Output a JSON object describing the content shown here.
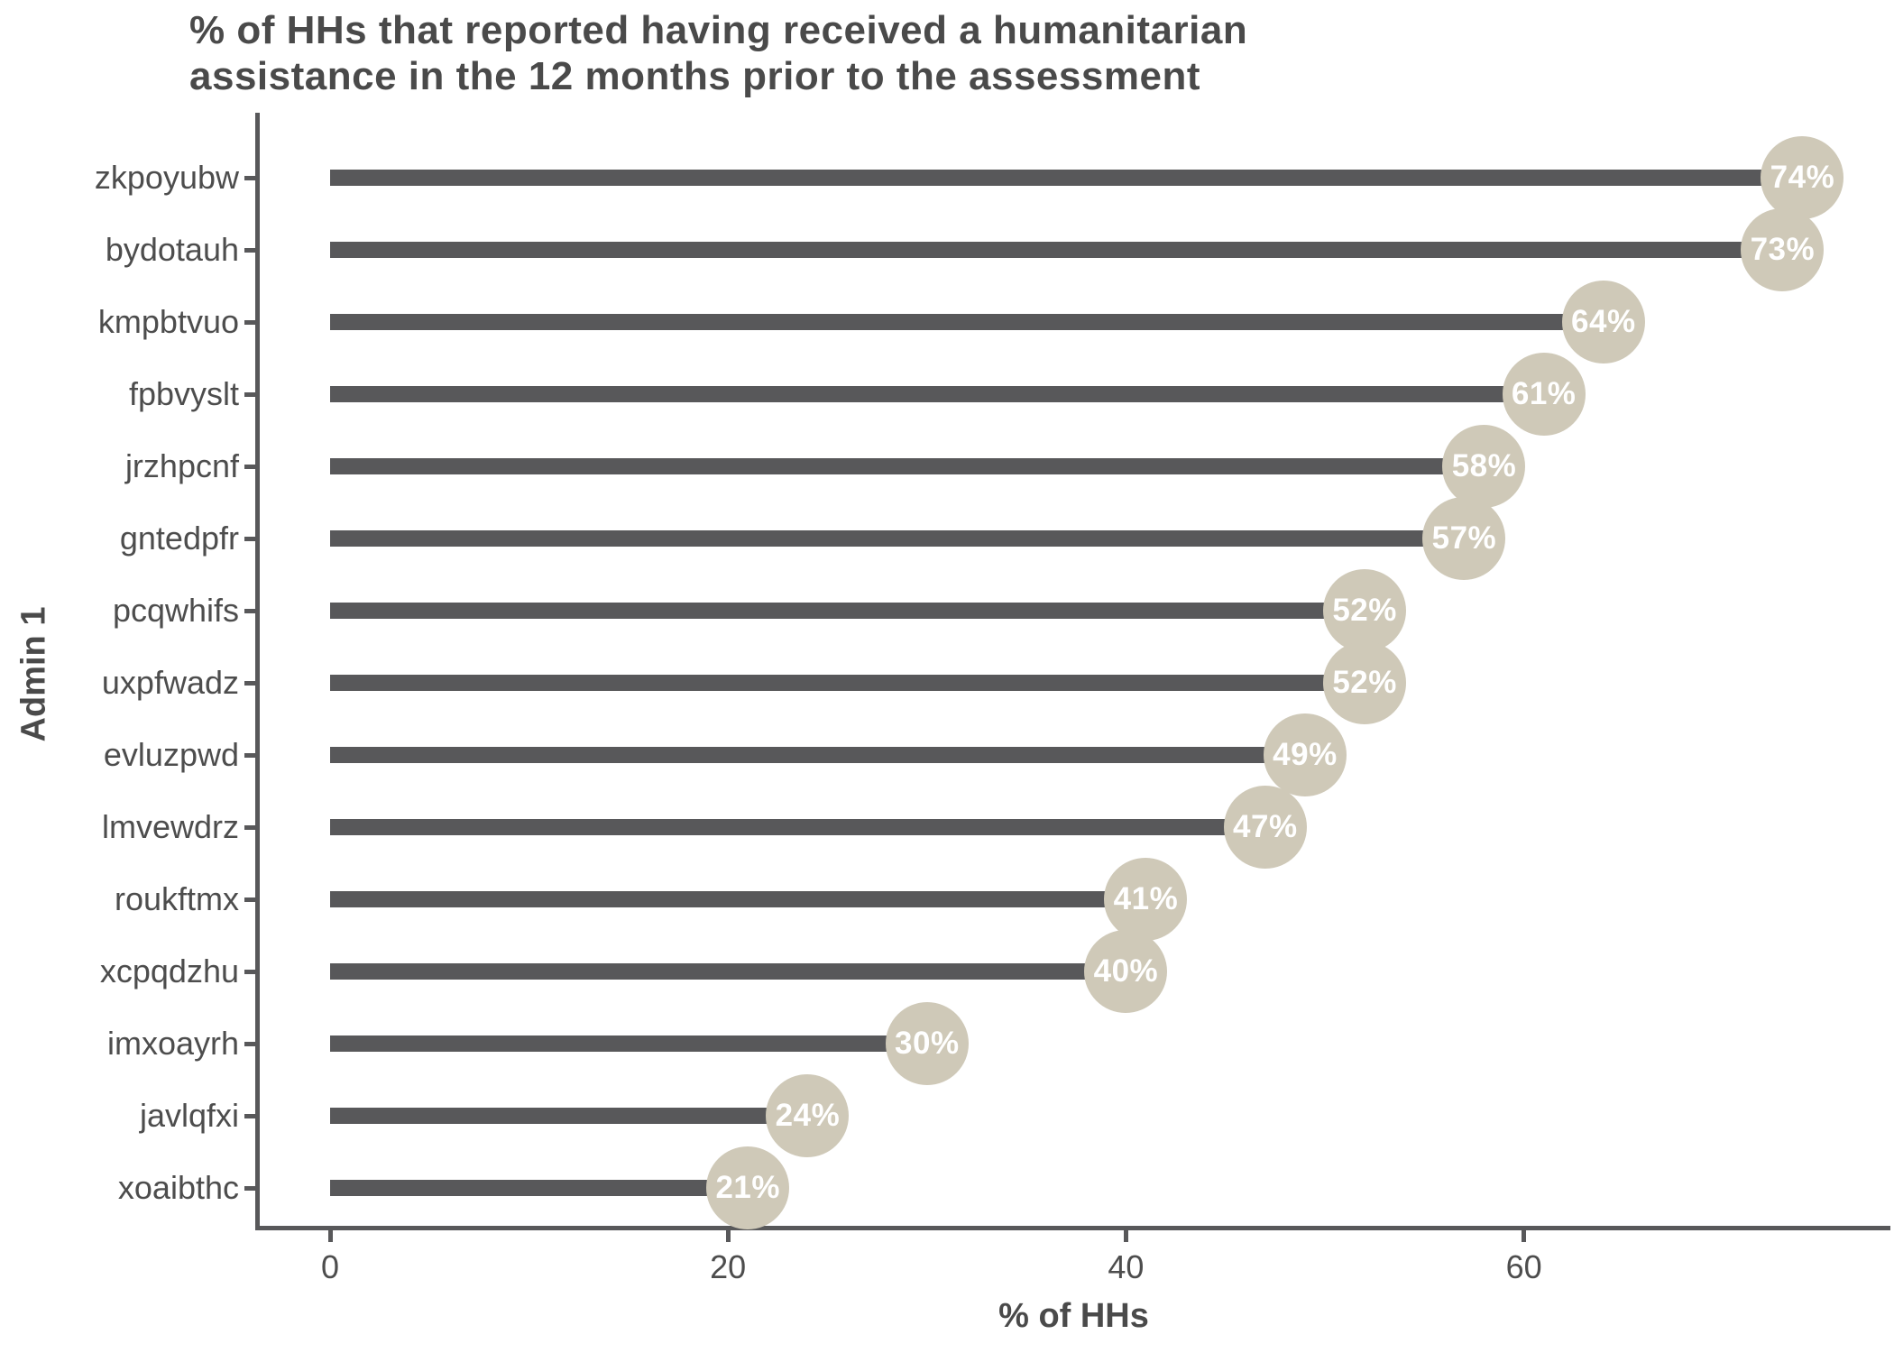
{
  "title_lines": [
    "% of HHs that reported having received a humanitarian",
    "assistance in the 12 months prior to the assessment"
  ],
  "chart_data": {
    "type": "bar",
    "orientation": "horizontal",
    "title": "% of HHs that reported having received a humanitarian assistance in the 12 months prior to the assessment",
    "xlabel": "% of HHs",
    "ylabel": "Admin 1",
    "categories": [
      "zkpoyubw",
      "bydotauh",
      "kmpbtvuo",
      "fpbvyslt",
      "jrzhpcnf",
      "gntedpfr",
      "pcqwhifs",
      "uxpfwadz",
      "evluzpwd",
      "lmvewdrz",
      "roukftmx",
      "xcpqdzhu",
      "imxoayrh",
      "javlqfxi",
      "xoaibthc"
    ],
    "values": [
      74,
      73,
      64,
      61,
      58,
      57,
      52,
      52,
      49,
      47,
      41,
      40,
      30,
      24,
      21
    ],
    "value_labels": [
      "74%",
      "73%",
      "64%",
      "61%",
      "58%",
      "57%",
      "52%",
      "52%",
      "49%",
      "47%",
      "41%",
      "40%",
      "30%",
      "24%",
      "21%"
    ],
    "x_ticks": [
      0,
      20,
      40,
      60
    ],
    "x_tick_labels": [
      "0",
      "20",
      "40",
      "60"
    ],
    "xlim": [
      0,
      78.4
    ],
    "grid": false,
    "legend": false,
    "colors": {
      "bar": "#58585a",
      "dot_fill": "#cfc9b8",
      "dot_text": "#ffffff",
      "axis": "#58585a",
      "text": "#4a4a4a"
    }
  }
}
